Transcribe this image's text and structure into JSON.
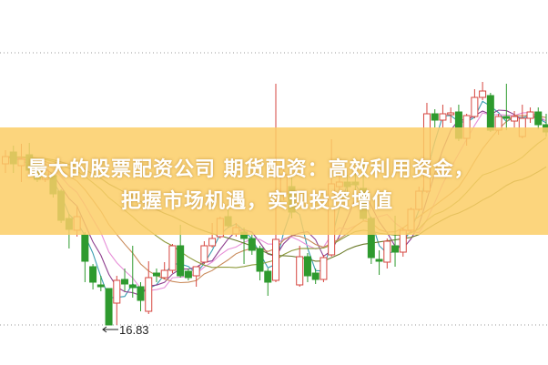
{
  "banner": {
    "line1": "最大的股票配资公司 期货配资：高效利用资金，",
    "line2": "把握市场机遇，实现投资增值"
  },
  "chart_data": {
    "type": "candlestick",
    "ylim": [
      16.39,
      20.4
    ],
    "grid_lines": [
      19.82,
      16.83
    ],
    "grid": "horizontal-dotted",
    "annotations": [
      {
        "text": "16.83",
        "arrow": "left",
        "price": 16.83
      }
    ],
    "colors": {
      "up": "#d6463f",
      "down": "#2e9a2e",
      "banner": "#fbce66"
    },
    "ma_colors": [
      "#3a9db0",
      "#8e3f8e",
      "#e78fd8",
      "#c98a5a",
      "#8f9a3c",
      "#6b7a2a"
    ],
    "ohlc": [
      [
        18.6,
        18.75,
        18.5,
        18.68
      ],
      [
        18.73,
        18.8,
        18.5,
        18.6
      ],
      [
        18.58,
        18.82,
        18.4,
        18.65
      ],
      [
        18.7,
        18.83,
        18.5,
        18.53
      ],
      [
        18.6,
        18.62,
        18.4,
        18.43
      ],
      [
        18.43,
        18.57,
        18.4,
        18.53
      ],
      [
        18.47,
        18.5,
        18.23,
        18.27
      ],
      [
        18.3,
        18.32,
        17.95,
        17.98
      ],
      [
        18.0,
        18.05,
        17.67,
        17.88
      ],
      [
        17.87,
        18.13,
        17.8,
        18.02
      ],
      [
        17.82,
        17.85,
        17.3,
        17.53
      ],
      [
        17.47,
        17.5,
        17.22,
        17.3
      ],
      [
        17.27,
        17.37,
        17.2,
        17.25
      ],
      [
        17.23,
        17.23,
        16.83,
        16.83
      ],
      [
        17.07,
        17.37,
        16.83,
        17.32
      ],
      [
        17.33,
        17.45,
        17.2,
        17.28
      ],
      [
        17.27,
        17.7,
        17.13,
        17.24
      ],
      [
        17.25,
        17.3,
        16.98,
        17.1
      ],
      [
        16.98,
        17.53,
        16.95,
        17.35
      ],
      [
        17.4,
        17.45,
        17.3,
        17.37
      ],
      [
        17.35,
        17.52,
        17.33,
        17.43
      ],
      [
        17.43,
        17.72,
        17.4,
        17.7
      ],
      [
        17.7,
        17.93,
        17.35,
        17.37
      ],
      [
        17.42,
        17.45,
        17.32,
        17.35
      ],
      [
        17.37,
        17.47,
        17.25,
        17.47
      ],
      [
        17.52,
        17.75,
        17.5,
        17.7
      ],
      [
        17.7,
        17.95,
        17.68,
        17.78
      ],
      [
        17.8,
        18.02,
        17.78,
        18.0
      ],
      [
        18.02,
        18.12,
        17.9,
        17.92
      ],
      [
        17.83,
        17.95,
        17.8,
        17.9
      ],
      [
        17.85,
        17.9,
        17.5,
        17.78
      ],
      [
        17.78,
        17.82,
        17.6,
        17.65
      ],
      [
        17.67,
        17.7,
        17.32,
        17.42
      ],
      [
        17.42,
        17.45,
        17.15,
        17.3
      ],
      [
        17.32,
        19.48,
        17.3,
        17.77
      ],
      [
        18.27,
        18.6,
        18.2,
        18.48
      ],
      [
        18.35,
        18.45,
        18.0,
        18.07
      ],
      [
        17.27,
        17.7,
        17.25,
        17.58
      ],
      [
        17.58,
        17.62,
        17.3,
        17.37
      ],
      [
        17.4,
        17.45,
        17.28,
        17.33
      ],
      [
        17.33,
        17.6,
        17.3,
        17.57
      ],
      [
        17.6,
        18.87,
        17.58,
        18.38
      ],
      [
        18.35,
        18.5,
        18.25,
        18.4
      ],
      [
        18.4,
        18.48,
        18.2,
        18.35
      ],
      [
        18.4,
        18.52,
        18.27,
        18.37
      ],
      [
        18.33,
        18.6,
        17.98,
        18.0
      ],
      [
        18.0,
        18.02,
        17.5,
        17.57
      ],
      [
        17.55,
        17.65,
        17.38,
        17.53
      ],
      [
        17.52,
        17.78,
        17.45,
        17.75
      ],
      [
        17.7,
        18.03,
        17.47,
        17.63
      ],
      [
        17.63,
        17.9,
        17.58,
        17.87
      ],
      [
        17.87,
        18.12,
        17.85,
        18.1
      ],
      [
        18.1,
        18.35,
        18.08,
        18.3
      ],
      [
        18.3,
        19.27,
        18.28,
        19.15
      ],
      [
        19.15,
        19.2,
        19.0,
        19.08
      ],
      [
        19.08,
        19.25,
        19.0,
        19.15
      ],
      [
        19.14,
        19.22,
        19.05,
        19.16
      ],
      [
        19.17,
        19.25,
        18.85,
        18.88
      ],
      [
        18.88,
        19.15,
        18.8,
        19.13
      ],
      [
        19.12,
        19.42,
        19.1,
        19.33
      ],
      [
        19.33,
        19.5,
        19.3,
        19.4
      ],
      [
        19.35,
        19.38,
        18.95,
        18.97
      ],
      [
        18.97,
        19.15,
        18.92,
        19.12
      ],
      [
        19.12,
        19.48,
        18.97,
        19.1
      ],
      [
        19.07,
        19.18,
        19.0,
        19.12
      ],
      [
        18.9,
        19.25,
        18.88,
        19.1
      ],
      [
        19.1,
        19.22,
        19.05,
        19.17
      ],
      [
        19.17,
        19.22,
        18.98,
        19.03
      ],
      [
        19.03,
        19.15,
        18.9,
        18.95
      ]
    ]
  }
}
